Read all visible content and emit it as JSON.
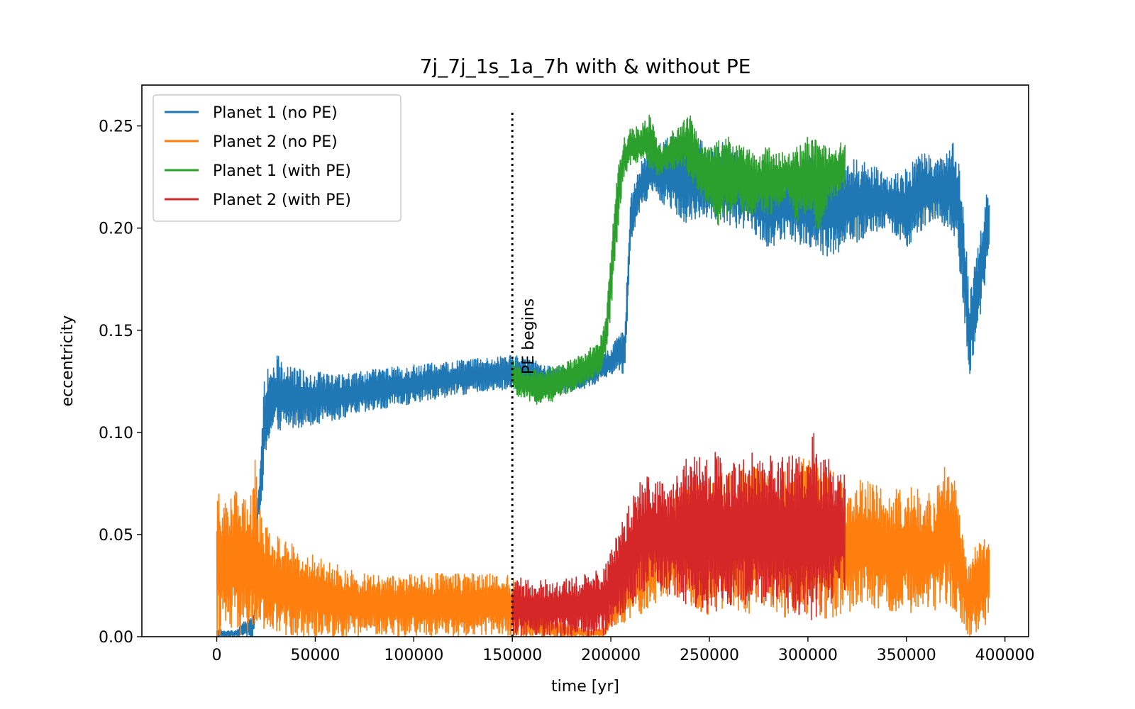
{
  "chart_data": {
    "type": "line",
    "title": "7j_7j_1s_1a_7h with & without PE",
    "xlabel": "time [yr]",
    "ylabel": "eccentricity",
    "xlim": [
      -38000,
      412000
    ],
    "ylim": [
      0.0,
      0.27
    ],
    "xticks": [
      0,
      50000,
      100000,
      150000,
      200000,
      250000,
      300000,
      350000,
      400000
    ],
    "xtick_labels": [
      "0",
      "50000",
      "100000",
      "150000",
      "200000",
      "250000",
      "300000",
      "350000",
      "400000"
    ],
    "yticks": [
      0.0,
      0.05,
      0.1,
      0.15,
      0.2,
      0.25
    ],
    "ytick_labels": [
      "0.00",
      "0.05",
      "0.10",
      "0.15",
      "0.20",
      "0.25"
    ],
    "grid": false,
    "legend_position": "top-left",
    "annotation": {
      "text": "PE begins",
      "x": 150000,
      "y_range": [
        0.0,
        0.257
      ],
      "line_style": "dotted",
      "color": "#000000"
    },
    "series": [
      {
        "name": "Planet 1 (no PE)",
        "color": "#1f77b4",
        "band_x": [
          0,
          4000,
          10000,
          16000,
          19000,
          21000,
          22500,
          24000,
          26000,
          30000,
          40000,
          50000,
          60000,
          70000,
          80000,
          90000,
          100000,
          110000,
          120000,
          130000,
          140000,
          150000,
          160000,
          170000,
          180000,
          190000,
          195000,
          200000,
          204000,
          207000,
          210000,
          215000,
          220000,
          230000,
          240000,
          250000,
          260000,
          270000,
          280000,
          290000,
          300000,
          310000,
          320000,
          330000,
          340000,
          350000,
          355000,
          360000,
          365000,
          370000,
          375000,
          378000,
          382000,
          386000,
          390000,
          392000
        ],
        "lower": [
          0.0,
          0.0,
          0.0,
          0.0,
          0.0,
          0.06,
          0.055,
          0.08,
          0.095,
          0.1,
          0.102,
          0.104,
          0.106,
          0.108,
          0.11,
          0.112,
          0.114,
          0.116,
          0.118,
          0.119,
          0.12,
          0.121,
          0.12,
          0.118,
          0.12,
          0.122,
          0.126,
          0.128,
          0.13,
          0.128,
          0.19,
          0.21,
          0.215,
          0.21,
          0.2,
          0.205,
          0.2,
          0.2,
          0.19,
          0.195,
          0.19,
          0.185,
          0.19,
          0.195,
          0.2,
          0.19,
          0.195,
          0.2,
          0.205,
          0.2,
          0.19,
          0.17,
          0.125,
          0.15,
          0.17,
          0.19
        ],
        "upper": [
          0.004,
          0.003,
          0.003,
          0.01,
          0.012,
          0.075,
          0.09,
          0.125,
          0.135,
          0.138,
          0.132,
          0.13,
          0.128,
          0.13,
          0.131,
          0.132,
          0.133,
          0.134,
          0.135,
          0.136,
          0.137,
          0.138,
          0.136,
          0.132,
          0.132,
          0.136,
          0.138,
          0.142,
          0.148,
          0.15,
          0.215,
          0.232,
          0.24,
          0.245,
          0.247,
          0.24,
          0.243,
          0.232,
          0.225,
          0.23,
          0.236,
          0.232,
          0.234,
          0.233,
          0.226,
          0.23,
          0.235,
          0.24,
          0.234,
          0.238,
          0.244,
          0.22,
          0.17,
          0.19,
          0.215,
          0.222
        ]
      },
      {
        "name": "Planet 2 (no PE)",
        "color": "#ff7f0e",
        "band_x": [
          0,
          2000,
          10000,
          18000,
          19500,
          21000,
          25000,
          30000,
          40000,
          50000,
          60000,
          70000,
          80000,
          90000,
          100000,
          120000,
          140000,
          150000,
          170000,
          190000,
          197000,
          200000,
          205000,
          210000,
          215000,
          220000,
          230000,
          240000,
          250000,
          260000,
          270000,
          280000,
          290000,
          300000,
          310000,
          320000,
          330000,
          340000,
          350000,
          360000,
          365000,
          370000,
          375000,
          378000,
          380000,
          382000,
          385000,
          390000,
          392000
        ],
        "lower": [
          0.0,
          0.0,
          0.0,
          0.0,
          0.0,
          0.0,
          0.0,
          0.0,
          0.0,
          0.0,
          0.0,
          0.0,
          0.0,
          0.0,
          0.0,
          0.0,
          0.0,
          0.0,
          0.0,
          0.0,
          0.0,
          0.005,
          0.005,
          0.008,
          0.01,
          0.015,
          0.02,
          0.015,
          0.01,
          0.015,
          0.01,
          0.015,
          0.008,
          0.01,
          0.008,
          0.012,
          0.015,
          0.012,
          0.01,
          0.015,
          0.012,
          0.015,
          0.012,
          0.005,
          0.0,
          0.0,
          0.002,
          0.005,
          0.01
        ],
        "upper": [
          0.07,
          0.072,
          0.072,
          0.072,
          0.1,
          0.065,
          0.055,
          0.05,
          0.045,
          0.04,
          0.036,
          0.032,
          0.03,
          0.03,
          0.031,
          0.031,
          0.031,
          0.03,
          0.008,
          0.003,
          0.005,
          0.018,
          0.04,
          0.055,
          0.06,
          0.062,
          0.07,
          0.078,
          0.08,
          0.082,
          0.085,
          0.08,
          0.082,
          0.09,
          0.085,
          0.075,
          0.078,
          0.07,
          0.075,
          0.07,
          0.072,
          0.085,
          0.08,
          0.06,
          0.04,
          0.035,
          0.045,
          0.05,
          0.053
        ]
      },
      {
        "name": "Planet 1 (with PE)",
        "color": "#2ca02c",
        "band_x": [
          150000,
          155000,
          160000,
          165000,
          170000,
          180000,
          190000,
          196000,
          198000,
          200000,
          203000,
          206000,
          210000,
          215000,
          220000,
          225000,
          230000,
          235000,
          240000,
          245000,
          250000,
          255000,
          260000,
          265000,
          270000,
          275000,
          280000,
          285000,
          290000,
          295000,
          300000,
          305000,
          310000,
          315000,
          319000
        ],
        "lower": [
          0.12,
          0.116,
          0.114,
          0.113,
          0.115,
          0.12,
          0.125,
          0.13,
          0.14,
          0.158,
          0.19,
          0.222,
          0.23,
          0.232,
          0.228,
          0.225,
          0.228,
          0.23,
          0.225,
          0.215,
          0.21,
          0.2,
          0.205,
          0.21,
          0.198,
          0.21,
          0.205,
          0.21,
          0.212,
          0.2,
          0.21,
          0.192,
          0.21,
          0.215,
          0.218
        ],
        "upper": [
          0.136,
          0.133,
          0.131,
          0.13,
          0.132,
          0.136,
          0.142,
          0.149,
          0.162,
          0.19,
          0.225,
          0.243,
          0.249,
          0.25,
          0.256,
          0.24,
          0.247,
          0.25,
          0.257,
          0.243,
          0.24,
          0.245,
          0.246,
          0.242,
          0.24,
          0.235,
          0.242,
          0.237,
          0.238,
          0.242,
          0.245,
          0.244,
          0.24,
          0.238,
          0.247
        ]
      },
      {
        "name": "Planet 2 (with PE)",
        "color": "#d62728",
        "band_x": [
          150000,
          160000,
          170000,
          180000,
          190000,
          197000,
          200000,
          205000,
          210000,
          215000,
          220000,
          230000,
          240000,
          250000,
          260000,
          270000,
          280000,
          290000,
          300000,
          303000,
          305000,
          310000,
          315000,
          319000
        ],
        "lower": [
          0.0,
          0.0,
          0.0,
          0.0,
          0.0,
          0.0,
          0.003,
          0.01,
          0.015,
          0.02,
          0.025,
          0.02,
          0.015,
          0.01,
          0.015,
          0.012,
          0.015,
          0.012,
          0.008,
          0.005,
          0.01,
          0.015,
          0.018,
          0.02
        ],
        "upper": [
          0.03,
          0.028,
          0.028,
          0.029,
          0.032,
          0.034,
          0.045,
          0.058,
          0.068,
          0.078,
          0.08,
          0.074,
          0.09,
          0.093,
          0.085,
          0.09,
          0.09,
          0.088,
          0.093,
          0.106,
          0.085,
          0.088,
          0.085,
          0.08
        ]
      }
    ]
  }
}
